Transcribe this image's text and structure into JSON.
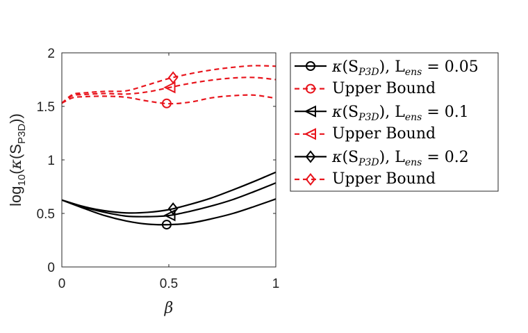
{
  "chart_data": {
    "type": "line",
    "xlabel": "β",
    "ylabel": {
      "prefix": "log",
      "prefix_sub": "10",
      "open": "(",
      "kappa": "κ",
      "arg_open": "(S",
      "arg_sub": "P3D",
      "close": "))"
    },
    "xlim": [
      0,
      1
    ],
    "ylim": [
      0,
      2
    ],
    "xticks": [
      "0",
      "0.5",
      "1"
    ],
    "yticks": [
      "0",
      "0.5",
      "1",
      "1.5",
      "2"
    ],
    "grid": false,
    "legend_position": "outside-right",
    "series": [
      {
        "name": "κ(S_P3D), L_ens = 0.05",
        "color": "#000000",
        "dash": "solid",
        "marker": "circle",
        "marker_x": 0.49,
        "x": [
          0,
          0.1,
          0.2,
          0.3,
          0.4,
          0.5,
          0.6,
          0.7,
          0.8,
          0.9,
          1.0
        ],
        "y": [
          0.625,
          0.55,
          0.48,
          0.43,
          0.4,
          0.395,
          0.41,
          0.45,
          0.5,
          0.565,
          0.635
        ]
      },
      {
        "name": "Upper Bound",
        "color": "#e8141c",
        "dash": "dashed",
        "marker": "circle",
        "marker_x": 0.49,
        "x": [
          0,
          0.05,
          0.1,
          0.2,
          0.3,
          0.4,
          0.5,
          0.6,
          0.7,
          0.8,
          0.9,
          1.0
        ],
        "y": [
          1.53,
          1.58,
          1.59,
          1.595,
          1.585,
          1.55,
          1.525,
          1.54,
          1.58,
          1.6,
          1.605,
          1.575
        ]
      },
      {
        "name": "κ(S_P3D), L_ens = 0.1",
        "color": "#000000",
        "dash": "solid",
        "marker": "triangle-left",
        "marker_x": 0.505,
        "x": [
          0,
          0.1,
          0.2,
          0.3,
          0.4,
          0.5,
          0.6,
          0.7,
          0.8,
          0.9,
          1.0
        ],
        "y": [
          0.625,
          0.56,
          0.51,
          0.475,
          0.47,
          0.48,
          0.52,
          0.57,
          0.63,
          0.705,
          0.785
        ]
      },
      {
        "name": "Upper Bound",
        "color": "#e8141c",
        "dash": "dashed",
        "marker": "triangle-left",
        "marker_x": 0.505,
        "x": [
          0,
          0.05,
          0.1,
          0.2,
          0.3,
          0.4,
          0.5,
          0.6,
          0.7,
          0.8,
          0.9,
          1.0
        ],
        "y": [
          1.53,
          1.6,
          1.61,
          1.62,
          1.615,
          1.635,
          1.675,
          1.715,
          1.745,
          1.765,
          1.77,
          1.75
        ]
      },
      {
        "name": "κ(S_P3D), L_ens = 0.2",
        "color": "#000000",
        "dash": "solid",
        "marker": "diamond",
        "marker_x": 0.52,
        "x": [
          0,
          0.1,
          0.2,
          0.3,
          0.4,
          0.5,
          0.6,
          0.7,
          0.8,
          0.9,
          1.0
        ],
        "y": [
          0.625,
          0.565,
          0.525,
          0.505,
          0.51,
          0.535,
          0.585,
          0.645,
          0.72,
          0.8,
          0.885
        ]
      },
      {
        "name": "Upper Bound",
        "color": "#e8141c",
        "dash": "dashed",
        "marker": "diamond",
        "marker_x": 0.52,
        "x": [
          0,
          0.05,
          0.1,
          0.2,
          0.3,
          0.4,
          0.5,
          0.6,
          0.7,
          0.8,
          0.9,
          1.0
        ],
        "y": [
          1.53,
          1.61,
          1.625,
          1.64,
          1.645,
          1.7,
          1.76,
          1.805,
          1.84,
          1.865,
          1.88,
          1.875
        ]
      }
    ],
    "legend": [
      {
        "kappa": "κ",
        "arg": "(S",
        "sub": "P3D",
        "mid": "), L",
        "lsub": "ens",
        "eq": " = 0.05"
      },
      {
        "text": "Upper Bound"
      },
      {
        "kappa": "κ",
        "arg": "(S",
        "sub": "P3D",
        "mid": "), L",
        "lsub": "ens",
        "eq": " = 0.1"
      },
      {
        "text": "Upper Bound"
      },
      {
        "kappa": "κ",
        "arg": "(S",
        "sub": "P3D",
        "mid": "), L",
        "lsub": "ens",
        "eq": " = 0.2"
      },
      {
        "text": "Upper Bound"
      }
    ]
  }
}
